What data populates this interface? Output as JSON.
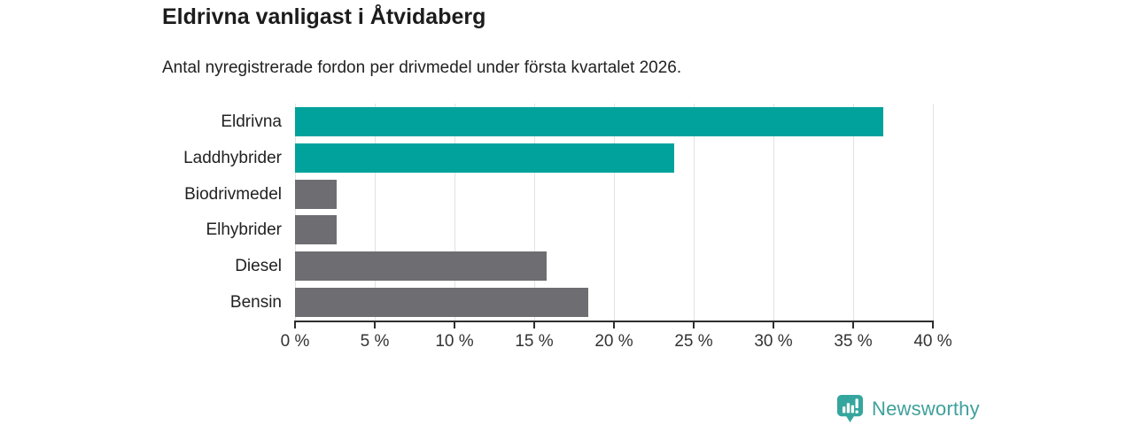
{
  "chart_data": {
    "type": "bar",
    "orientation": "horizontal",
    "title": "Eldrivna vanligast i Åtvidaberg",
    "subtitle": "Antal nyregistrerade fordon per drivmedel under första kvartalet 2026.",
    "categories": [
      "Eldrivna",
      "Laddhybrider",
      "Biodrivmedel",
      "Elhybrider",
      "Diesel",
      "Bensin"
    ],
    "values": [
      36.9,
      23.8,
      2.6,
      2.6,
      15.8,
      18.4
    ],
    "unit": "%",
    "xlim": [
      0,
      40
    ],
    "xticks": [
      0,
      5,
      10,
      15,
      20,
      25,
      30,
      35,
      40
    ],
    "xtick_suffix": " %",
    "grid": true,
    "legend": "none",
    "bar_colors": [
      "#00a29b",
      "#00a29b",
      "#6e6e72",
      "#6e6e72",
      "#6e6e72",
      "#6e6e72"
    ]
  },
  "colors": {
    "accent_teal": "#00a29b",
    "neutral_gray": "#6e6e72",
    "gridline": "#e2e2e2",
    "axis": "#2e2e2e",
    "logo_teal": "#35a69e",
    "logo_text": "#3fa09b"
  },
  "footer": {
    "brand": "Newsworthy"
  }
}
